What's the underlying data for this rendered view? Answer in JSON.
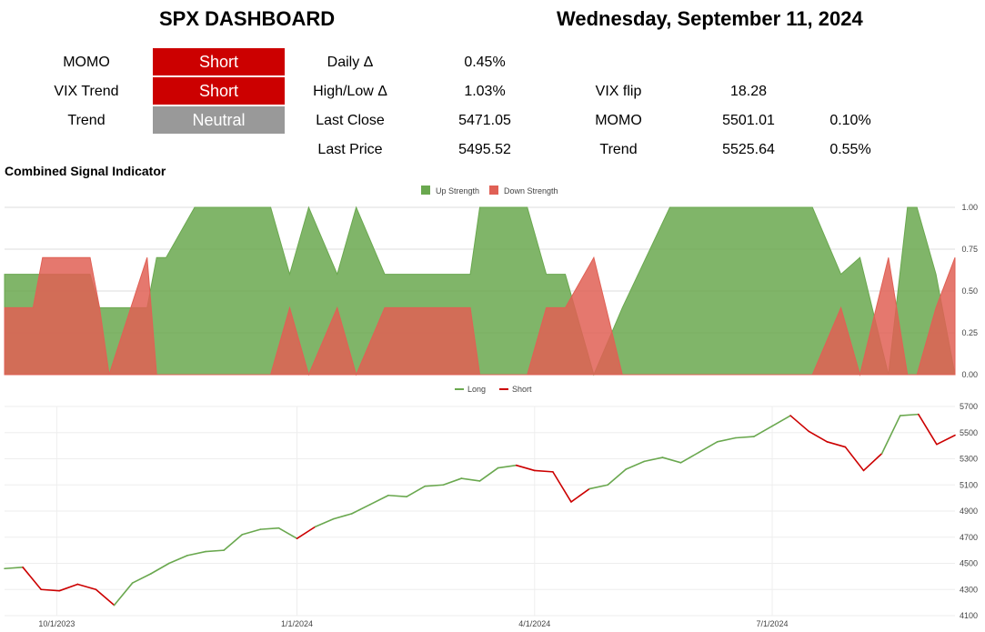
{
  "header": {
    "title": "SPX DASHBOARD",
    "date": "Wednesday, September 11, 2024"
  },
  "signals": [
    {
      "label": "MOMO",
      "value": "Short",
      "color": "#cc0000"
    },
    {
      "label": "VIX Trend",
      "value": "Short",
      "color": "#cc0000"
    },
    {
      "label": "Trend",
      "value": "Neutral",
      "color": "#999999"
    }
  ],
  "stats": [
    {
      "label": "Daily Δ",
      "value": "0.45%"
    },
    {
      "label": "High/Low Δ",
      "value": "1.03%"
    },
    {
      "label": "Last Close",
      "value": "5471.05"
    },
    {
      "label": "Last Price",
      "value": "5495.52"
    }
  ],
  "levels": [
    {
      "label": "VIX flip",
      "value": "18.28",
      "pct": ""
    },
    {
      "label": "MOMO",
      "value": "5501.01",
      "pct": "0.10%"
    },
    {
      "label": "Trend",
      "value": "5525.64",
      "pct": "0.55%"
    }
  ],
  "section_title": "Combined Signal Indicator",
  "chart_data": [
    {
      "type": "area",
      "title": "",
      "legend_position": "top-center",
      "series": [
        {
          "name": "Up Strength",
          "color": "#6aa84f"
        },
        {
          "name": "Down Strength",
          "color": "#e06055"
        }
      ],
      "y_ticks": [
        "1.00",
        "0.75",
        "0.50",
        "0.25",
        "0.00"
      ],
      "ylim": [
        0,
        1
      ],
      "x": [
        0,
        0.03,
        0.04,
        0.09,
        0.1,
        0.11,
        0.15,
        0.16,
        0.17,
        0.2,
        0.21,
        0.27,
        0.28,
        0.3,
        0.32,
        0.35,
        0.37,
        0.4,
        0.44,
        0.49,
        0.5,
        0.55,
        0.57,
        0.59,
        0.62,
        0.65,
        0.7,
        0.75,
        0.82,
        0.85,
        0.88,
        0.9,
        0.93,
        0.95,
        0.96,
        0.98,
        1.0
      ],
      "up_strength": [
        0.6,
        0.6,
        0.6,
        0.6,
        0.4,
        0.4,
        0.4,
        0.7,
        0.7,
        1.0,
        1.0,
        1.0,
        1.0,
        0.6,
        1.0,
        0.6,
        1.0,
        0.6,
        0.6,
        0.6,
        1.0,
        1.0,
        0.6,
        0.6,
        0.0,
        0.4,
        1.0,
        1.0,
        1.0,
        1.0,
        0.6,
        0.7,
        0.0,
        1.0,
        1.0,
        0.6,
        0.0
      ],
      "down_strength": [
        0.4,
        0.4,
        0.7,
        0.7,
        0.4,
        0.0,
        0.7,
        0.0,
        0.0,
        0.0,
        0.0,
        0.0,
        0.0,
        0.4,
        0.0,
        0.4,
        0.0,
        0.4,
        0.4,
        0.4,
        0.0,
        0.0,
        0.4,
        0.4,
        0.7,
        0.0,
        0.0,
        0.0,
        0.0,
        0.0,
        0.4,
        0.0,
        0.7,
        0.0,
        0.0,
        0.4,
        0.7
      ]
    },
    {
      "type": "line",
      "title": "",
      "legend_position": "top-center",
      "series": [
        {
          "name": "Long",
          "color": "#6aa84f"
        },
        {
          "name": "Short",
          "color": "#cc0000"
        }
      ],
      "x_ticks": [
        "10/1/2023",
        "1/1/2024",
        "4/1/2024",
        "7/1/2024"
      ],
      "y_ticks": [
        "5700",
        "5500",
        "5300",
        "5100",
        "4900",
        "4700",
        "4500",
        "4300",
        "4100"
      ],
      "ylim": [
        4100,
        5700
      ],
      "x": [
        "2023-09-11",
        "2023-09-18",
        "2023-09-25",
        "2023-10-02",
        "2023-10-09",
        "2023-10-16",
        "2023-10-23",
        "2023-10-30",
        "2023-11-06",
        "2023-11-13",
        "2023-11-20",
        "2023-11-27",
        "2023-12-04",
        "2023-12-11",
        "2023-12-18",
        "2023-12-25",
        "2024-01-01",
        "2024-01-08",
        "2024-01-15",
        "2024-01-22",
        "2024-01-29",
        "2024-02-05",
        "2024-02-12",
        "2024-02-19",
        "2024-02-26",
        "2024-03-04",
        "2024-03-11",
        "2024-03-18",
        "2024-03-25",
        "2024-04-01",
        "2024-04-08",
        "2024-04-15",
        "2024-04-22",
        "2024-04-29",
        "2024-05-06",
        "2024-05-13",
        "2024-05-20",
        "2024-05-27",
        "2024-06-03",
        "2024-06-10",
        "2024-06-17",
        "2024-06-24",
        "2024-07-01",
        "2024-07-08",
        "2024-07-15",
        "2024-07-22",
        "2024-07-29",
        "2024-08-05",
        "2024-08-12",
        "2024-08-19",
        "2024-08-26",
        "2024-09-02",
        "2024-09-09"
      ],
      "price": [
        4460,
        4470,
        4300,
        4290,
        4340,
        4300,
        4180,
        4350,
        4420,
        4500,
        4560,
        4590,
        4600,
        4720,
        4760,
        4770,
        4690,
        4780,
        4840,
        4880,
        4950,
        5020,
        5010,
        5090,
        5100,
        5150,
        5130,
        5230,
        5250,
        5210,
        5200,
        4970,
        5070,
        5100,
        5220,
        5280,
        5310,
        5270,
        5350,
        5430,
        5460,
        5470,
        5550,
        5630,
        5510,
        5430,
        5390,
        5210,
        5340,
        5630,
        5640,
        5410,
        5480
      ],
      "signal": [
        "Long",
        "Long",
        "Short",
        "Short",
        "Short",
        "Short",
        "Short",
        "Long",
        "Long",
        "Long",
        "Long",
        "Long",
        "Long",
        "Long",
        "Long",
        "Long",
        "Long",
        "Short",
        "Long",
        "Long",
        "Long",
        "Long",
        "Long",
        "Long",
        "Long",
        "Long",
        "Long",
        "Long",
        "Long",
        "Short",
        "Short",
        "Short",
        "Short",
        "Long",
        "Long",
        "Long",
        "Long",
        "Long",
        "Long",
        "Long",
        "Long",
        "Long",
        "Long",
        "Long",
        "Short",
        "Short",
        "Short",
        "Short",
        "Short",
        "Long",
        "Long",
        "Short",
        "Short"
      ]
    }
  ]
}
